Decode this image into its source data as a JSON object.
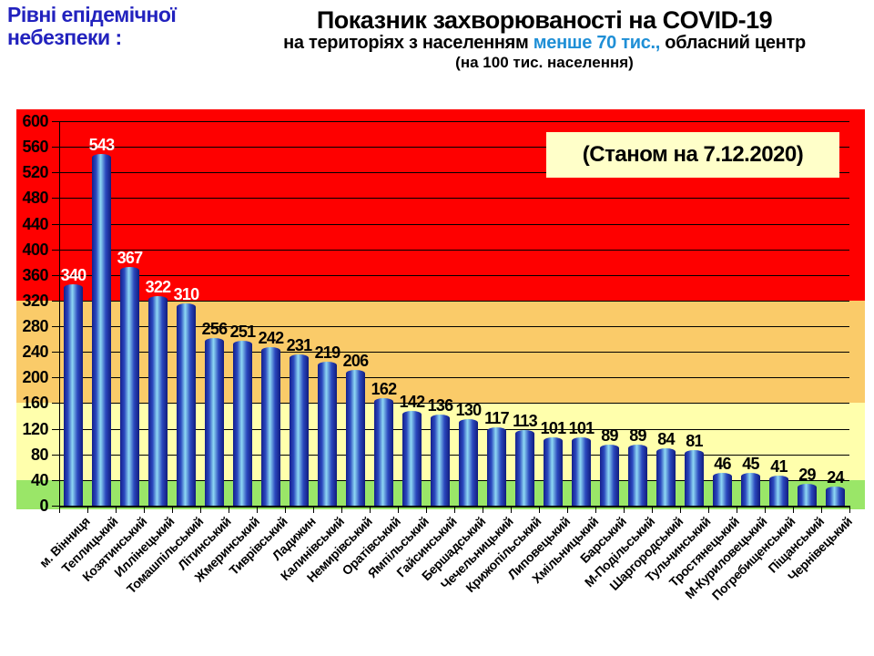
{
  "header": {
    "line1": "Рівні епідемічної",
    "line2": "небезпеки :"
  },
  "title": {
    "line1": "Показник захворюваності на COVID-19",
    "line2_prefix": "на територіях з населенням ",
    "line2_highlight": "менше 70 тис.,",
    "line2_suffix": " обласний центр",
    "line3": "(на 100  тис. населення)"
  },
  "colors": {
    "header_blue": "#2222BE",
    "title_highlight_blue": "#1F8FD6",
    "annotation_bg": "#FFFFC9",
    "value_label_light": "#FFFFFF",
    "value_label_dark": "#000000",
    "grid_black": "#000000"
  },
  "chart_data": {
    "type": "bar",
    "title": "Показник захворюваності на COVID-19 на територіях з населенням менше 70 тис., обласний центр (на 100 тис. населення)",
    "annotation": "(Станом на 7.12.2020)",
    "categories": [
      "м. Вінниця",
      "Теплицький",
      "Козятинський",
      "Иллінецький",
      "Томашпільський",
      "Літинський",
      "Жмеринський",
      "Тиврівський",
      "Ладижин",
      "Калинівський",
      "Немирівський",
      "Оратівський",
      "Ямпільський",
      "Гайсинський",
      "Бершадський",
      "Чечельницький",
      "Крижопільський",
      "Липовецький",
      "Хмільницький",
      "Барський",
      "М-Подільський",
      "Шаргородський",
      "Тульчинський",
      "Тростянецький",
      "М-Куриловецький",
      "Погребищенський",
      "Піщанський",
      "Чернівецький"
    ],
    "values": [
      340,
      543,
      367,
      322,
      310,
      256,
      251,
      242,
      231,
      219,
      206,
      162,
      142,
      136,
      130,
      117,
      113,
      101,
      101,
      89,
      89,
      84,
      81,
      46,
      45,
      41,
      29,
      24
    ],
    "ylim": [
      0,
      600
    ],
    "ytick_step": 40,
    "grid": true,
    "legend_position": "none",
    "bar_gradient": [
      "#141F8C",
      "#2B49BE",
      "#8FD9F4",
      "#2B49BE",
      "#101B7E"
    ],
    "risk_zones": [
      {
        "level": "green",
        "from": 0,
        "to": 40,
        "color": "#9AE668"
      },
      {
        "level": "yellow",
        "from": 40,
        "to": 160,
        "color": "#FFFFAC"
      },
      {
        "level": "orange",
        "from": 160,
        "to": 320,
        "color": "#FACB69"
      },
      {
        "level": "red",
        "from": 320,
        "to": 600,
        "color": "#FE0000"
      }
    ]
  }
}
